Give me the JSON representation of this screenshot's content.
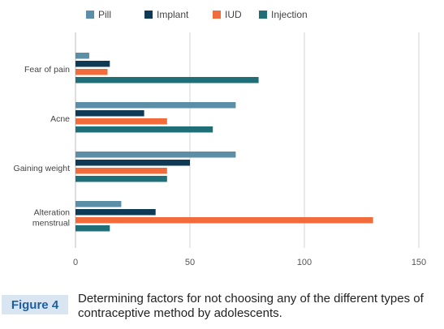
{
  "chart_data": {
    "type": "bar",
    "orientation": "horizontal",
    "categories": [
      "Fear of pain",
      "Acne",
      "Gaining weight",
      "Alteration menstrual"
    ],
    "series": [
      {
        "name": "Pill",
        "color": "#5b8fa8",
        "values": [
          6,
          70,
          70,
          20
        ]
      },
      {
        "name": "Implant",
        "color": "#0f3a55",
        "values": [
          15,
          30,
          50,
          35
        ]
      },
      {
        "name": "IUD",
        "color": "#f26b3a",
        "values": [
          14,
          40,
          40,
          130
        ]
      },
      {
        "name": "Injection",
        "color": "#1f6f78",
        "values": [
          80,
          60,
          40,
          15
        ]
      }
    ],
    "xlim": [
      0,
      150
    ],
    "xticks": [
      0,
      50,
      100,
      150
    ],
    "grid": true,
    "legend_position": "top"
  },
  "caption": {
    "label": "Figure 4",
    "text": "Determining factors for not choosing any of the different types of contraceptive method by adolescents."
  }
}
